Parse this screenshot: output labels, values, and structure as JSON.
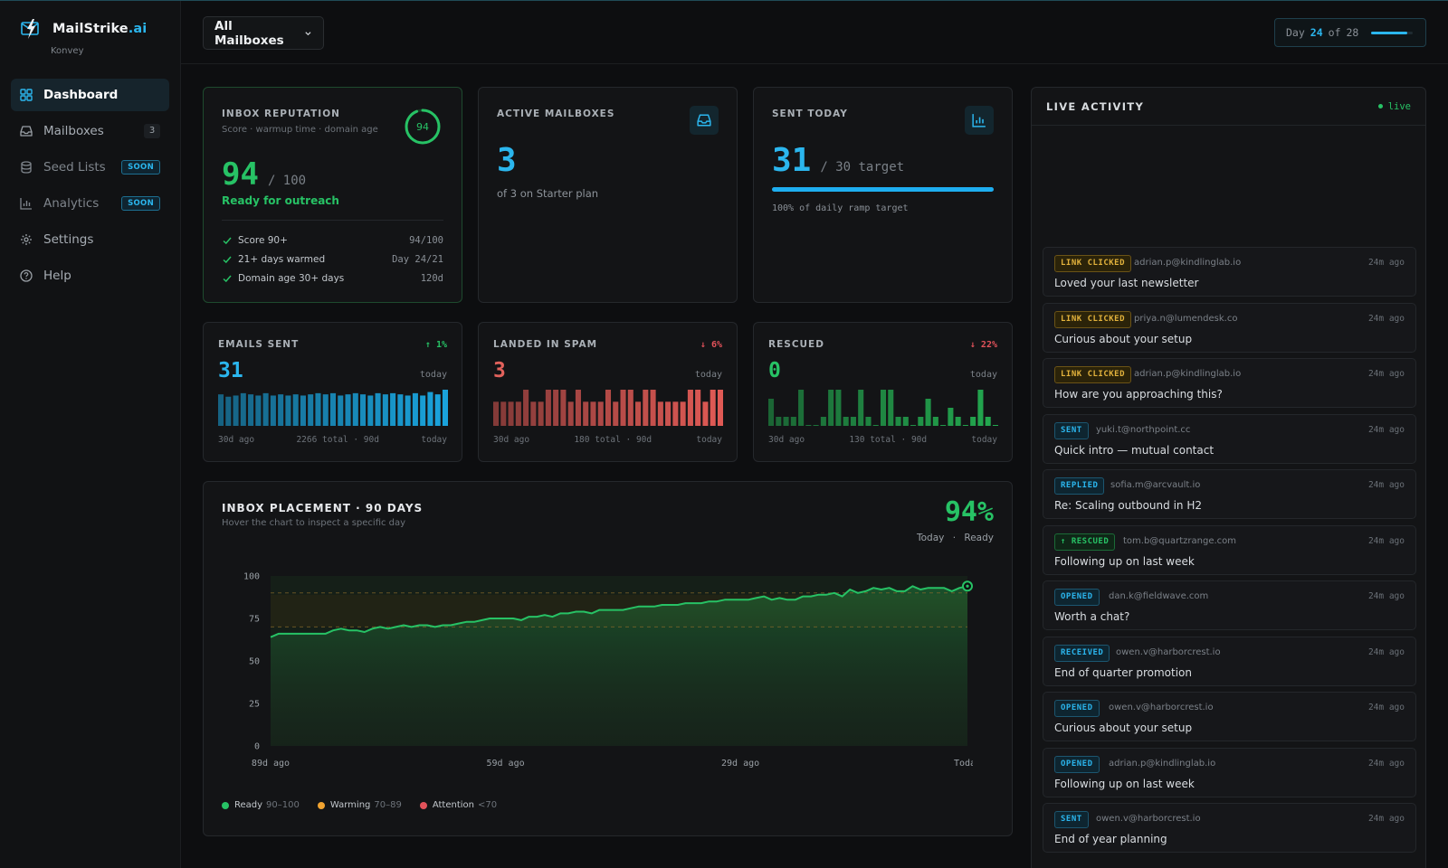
{
  "brand": {
    "name": "MailStrike",
    "suffix": ".ai",
    "workspace": "Konvey"
  },
  "sidebar": {
    "items": [
      {
        "label": "Dashboard",
        "icon": "grid-icon",
        "active": true
      },
      {
        "label": "Mailboxes",
        "icon": "inbox-icon",
        "count": "3"
      },
      {
        "label": "Seed Lists",
        "icon": "database-icon",
        "badge": "SOON"
      },
      {
        "label": "Analytics",
        "icon": "bar-chart-icon",
        "badge": "SOON"
      },
      {
        "label": "Settings",
        "icon": "gear-icon"
      },
      {
        "label": "Help",
        "icon": "help-circle-icon"
      }
    ]
  },
  "header": {
    "mailbox_filter": "All Mailboxes",
    "day": {
      "prefix": "Day",
      "current": "24",
      "of_label": "of",
      "total": "28",
      "progress": 0.857
    }
  },
  "cards": {
    "reputation": {
      "label": "INBOX REPUTATION",
      "sub": "Score · warmup time · domain age",
      "ring_value": "94",
      "ring_fraction": 0.94,
      "score": "94",
      "of": "/ 100",
      "status": "Ready for outreach",
      "checks": [
        {
          "label": "Score 90+",
          "value": "94/100"
        },
        {
          "label": "21+ days warmed",
          "value": "Day 24/21"
        },
        {
          "label": "Domain age 30+ days",
          "value": "120d"
        }
      ]
    },
    "active": {
      "label": "ACTIVE MAILBOXES",
      "value": "3",
      "note": "of 3 on Starter plan",
      "icon": "inbox-icon"
    },
    "sent_today": {
      "label": "SENT TODAY",
      "value": "31",
      "target": "/ 30 target",
      "progress": 1.0,
      "note": "100% of daily ramp target",
      "icon": "bar-chart-icon"
    }
  },
  "mini": [
    {
      "label": "EMAILS SENT",
      "delta": "↑ 1%",
      "value": "31",
      "period": "today",
      "start": "30d ago",
      "total": "2266 total · 90d",
      "end": "today"
    },
    {
      "label": "LANDED IN SPAM",
      "delta": "↓ 6%",
      "value": "3",
      "period": "today",
      "start": "30d ago",
      "total": "180 total · 90d",
      "end": "today"
    },
    {
      "label": "RESCUED",
      "delta": "↓ 22%",
      "value": "0",
      "period": "today",
      "start": "30d ago",
      "total": "130 total · 90d",
      "end": "today"
    }
  ],
  "mini_colors": [
    "#1aa3dc",
    "#e05a55",
    "#23a84f"
  ],
  "placement": {
    "title": "INBOX PLACEMENT · 90 DAYS",
    "sub": "Hover the chart to inspect a specific day",
    "big": "94%",
    "meta_today": "Today",
    "meta_sep": "·",
    "meta_status": "Ready",
    "legend": [
      {
        "label": "Ready",
        "range": "90–100",
        "color": "#27c265"
      },
      {
        "label": "Warming",
        "range": "70–89",
        "color": "#f0a330"
      },
      {
        "label": "Attention",
        "range": "<70",
        "color": "#e2525a"
      }
    ]
  },
  "chart_data": [
    {
      "type": "bar",
      "title": "EMAILS SENT",
      "categories_start": "30d ago",
      "categories_end": "today",
      "values": [
        27,
        25,
        26,
        28,
        27,
        26,
        28,
        26,
        27,
        26,
        27,
        26,
        27,
        28,
        27,
        28,
        26,
        27,
        28,
        27,
        26,
        28,
        27,
        28,
        27,
        26,
        28,
        26,
        29,
        27,
        31
      ]
    },
    {
      "type": "bar",
      "title": "LANDED IN SPAM",
      "categories_start": "30d ago",
      "categories_end": "today",
      "values": [
        2,
        2,
        2,
        2,
        3,
        2,
        2,
        3,
        3,
        3,
        2,
        3,
        2,
        2,
        2,
        3,
        2,
        3,
        3,
        2,
        3,
        3,
        2,
        2,
        2,
        2,
        3,
        3,
        2,
        3,
        3
      ]
    },
    {
      "type": "bar",
      "title": "RESCUED",
      "categories_start": "30d ago",
      "categories_end": "today",
      "values": [
        3,
        1,
        1,
        1,
        4,
        0,
        0,
        1,
        4,
        4,
        1,
        1,
        4,
        1,
        0,
        4,
        4,
        1,
        1,
        0,
        1,
        3,
        1,
        0,
        2,
        1,
        0,
        1,
        4,
        1,
        0
      ]
    },
    {
      "type": "area",
      "title": "INBOX PLACEMENT · 90 DAYS",
      "ylim": [
        0,
        100
      ],
      "yticks": [
        0,
        25,
        50,
        75,
        100
      ],
      "xticks": [
        "89d ago",
        "59d ago",
        "29d ago",
        "Today"
      ],
      "bands": [
        {
          "name": "Ready",
          "range": [
            90,
            100
          ]
        },
        {
          "name": "Warming",
          "range": [
            70,
            89
          ]
        },
        {
          "name": "Attention",
          "range": [
            0,
            70
          ]
        }
      ],
      "values": [
        64,
        66,
        66,
        66,
        66,
        66,
        66,
        66,
        68,
        69,
        68,
        68,
        67,
        69,
        70,
        69,
        70,
        71,
        70,
        71,
        71,
        70,
        71,
        71,
        72,
        73,
        73,
        74,
        75,
        75,
        75,
        75,
        74,
        76,
        76,
        77,
        76,
        78,
        78,
        79,
        79,
        78,
        80,
        80,
        80,
        80,
        81,
        82,
        82,
        82,
        83,
        83,
        83,
        84,
        84,
        84,
        85,
        85,
        86,
        86,
        86,
        86,
        87,
        88,
        86,
        87,
        86,
        86,
        88,
        88,
        89,
        89,
        90,
        88,
        92,
        90,
        91,
        93,
        92,
        93,
        91,
        91,
        94,
        92,
        93,
        93,
        93,
        91,
        93,
        94
      ]
    }
  ],
  "live": {
    "title": "LIVE ACTIVITY",
    "badge": "live",
    "items": [
      {
        "tag": "LINK CLICKED",
        "kind": "click",
        "email": "adrian.p@kindlinglab.io",
        "time": "24m ago",
        "subject": "Loved your last newsletter"
      },
      {
        "tag": "LINK CLICKED",
        "kind": "click",
        "email": "priya.n@lumendesk.co",
        "time": "24m ago",
        "subject": "Curious about your setup"
      },
      {
        "tag": "LINK CLICKED",
        "kind": "click",
        "email": "adrian.p@kindlinglab.io",
        "time": "24m ago",
        "subject": "How are you approaching this?"
      },
      {
        "tag": "SENT",
        "kind": "blue",
        "email": "yuki.t@northpoint.cc",
        "time": "24m ago",
        "subject": "Quick intro — mutual contact"
      },
      {
        "tag": "REPLIED",
        "kind": "blue",
        "email": "sofia.m@arcvault.io",
        "time": "24m ago",
        "subject": "Re: Scaling outbound in H2"
      },
      {
        "tag": "↑ RESCUED",
        "kind": "green",
        "email": "tom.b@quartzrange.com",
        "time": "24m ago",
        "subject": "Following up on last week"
      },
      {
        "tag": "OPENED",
        "kind": "blue",
        "email": "dan.k@fieldwave.com",
        "time": "24m ago",
        "subject": "Worth a chat?"
      },
      {
        "tag": "RECEIVED",
        "kind": "blue",
        "email": "owen.v@harborcrest.io",
        "time": "24m ago",
        "subject": "End of quarter promotion"
      },
      {
        "tag": "OPENED",
        "kind": "blue",
        "email": "owen.v@harborcrest.io",
        "time": "24m ago",
        "subject": "Curious about your setup"
      },
      {
        "tag": "OPENED",
        "kind": "blue",
        "email": "adrian.p@kindlinglab.io",
        "time": "24m ago",
        "subject": "Following up on last week"
      },
      {
        "tag": "SENT",
        "kind": "blue",
        "email": "owen.v@harborcrest.io",
        "time": "24m ago",
        "subject": "End of year planning"
      }
    ]
  }
}
